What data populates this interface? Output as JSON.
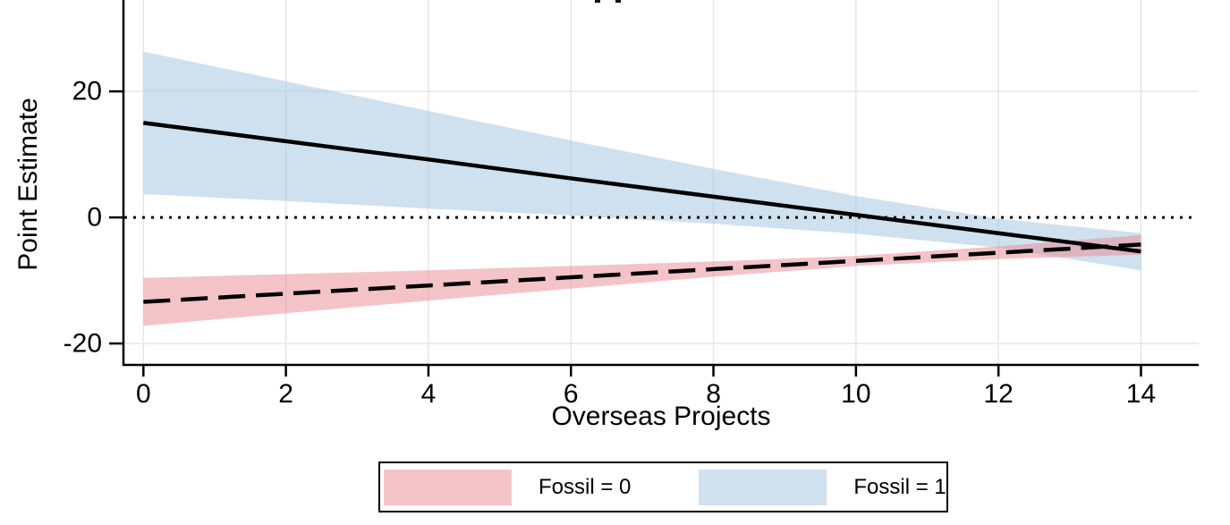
{
  "chart_data": {
    "type": "line",
    "title": "",
    "xlabel": "Overseas Projects",
    "ylabel": "Point Estimate",
    "x_ticks": [
      0,
      2,
      4,
      6,
      8,
      10,
      12,
      14
    ],
    "y_ticks": [
      20,
      0,
      -20
    ],
    "xlim": [
      -0.28,
      14.81
    ],
    "ylim": [
      -23.4,
      34.5
    ],
    "grid": true,
    "legend_position": "bottom-center",
    "reference_line": {
      "y": 0,
      "style": "dotted",
      "color": "#000000"
    },
    "x": [
      0,
      2,
      4,
      6,
      8,
      10,
      12,
      14
    ],
    "series": [
      {
        "name": "Fossil = 0",
        "line_style": "dashed",
        "line_color": "#000000",
        "band_color": "rgba(233,135,145,0.5)",
        "legend_color": "#f4c3c8",
        "y": [
          -13.4,
          -12.1,
          -10.8,
          -9.5,
          -8.2,
          -6.9,
          -5.6,
          -4.3
        ],
        "ci_lower": [
          -17.2,
          -15.2,
          -13.2,
          -11.3,
          -9.4,
          -7.7,
          -6.6,
          -5.9
        ],
        "ci_upper": [
          -9.6,
          -9.0,
          -8.4,
          -7.7,
          -7.0,
          -6.1,
          -4.6,
          -2.8
        ]
      },
      {
        "name": "Fossil = 1",
        "line_style": "solid",
        "line_color": "#000000",
        "band_color": "rgba(159,193,221,0.5)",
        "legend_color": "#cfe0ee",
        "y": [
          15.0,
          12.1,
          9.2,
          6.2,
          3.3,
          0.4,
          -2.5,
          -5.4
        ],
        "ci_lower": [
          3.7,
          2.6,
          1.4,
          0.3,
          -1.0,
          -2.6,
          -4.8,
          -8.4
        ],
        "ci_upper": [
          26.3,
          21.6,
          16.9,
          12.2,
          7.7,
          3.4,
          -0.2,
          -2.5
        ]
      }
    ]
  },
  "legend": {
    "items": [
      {
        "label": "Fossil = 0",
        "color": "#f4c3c8"
      },
      {
        "label": "Fossil = 1",
        "color": "#cfe0ee"
      }
    ]
  }
}
